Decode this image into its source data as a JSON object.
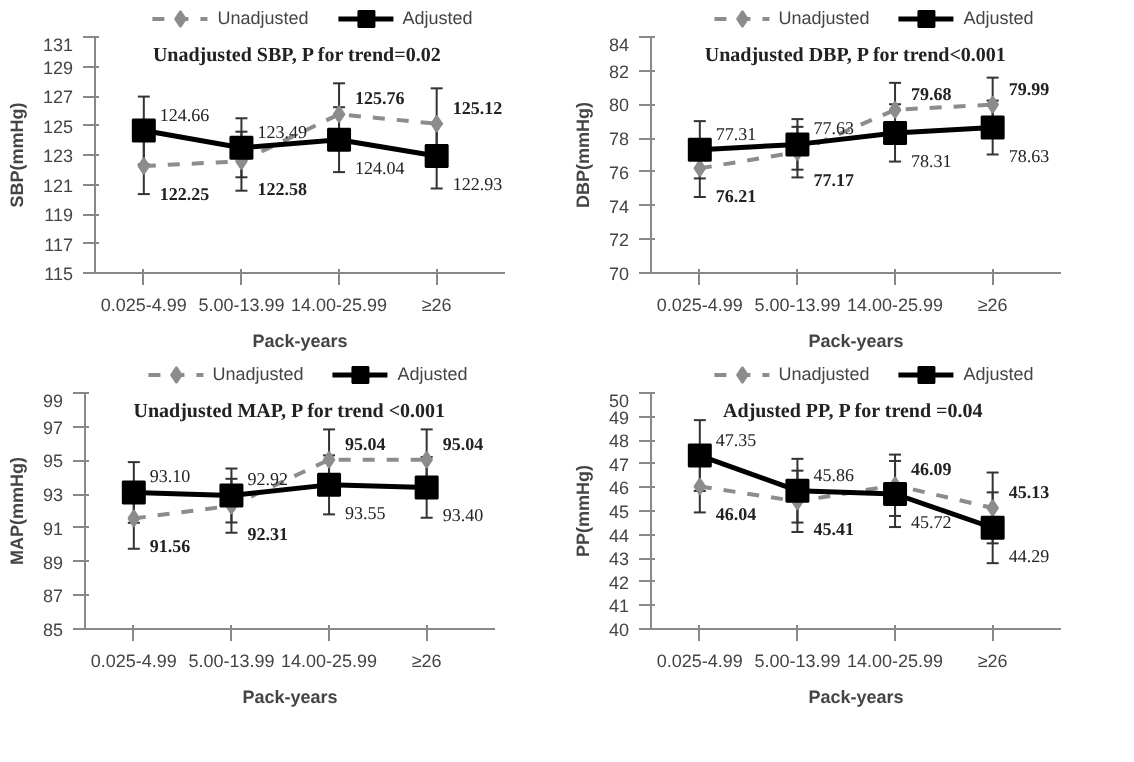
{
  "chart_data": [
    {
      "type": "line",
      "title": "Unadjusted  SBP, P for trend=0.02",
      "xlabel": "Pack-years",
      "ylabel": "SBP(mmHg)",
      "categories": [
        "0.025-4.99",
        "5.00-13.99",
        "14.00-25.99",
        "≥26"
      ],
      "ylim": [
        115,
        131
      ],
      "yticks": [
        115,
        117,
        119,
        121,
        123,
        125,
        127,
        129,
        131
      ],
      "grid": false,
      "legend": "top",
      "series": [
        {
          "name": "Unadjusted",
          "color": "#8c8c8c",
          "marker": "diamond",
          "line_style": "dashed",
          "values": [
            122.25,
            122.58,
            125.76,
            125.12
          ],
          "value_labels": [
            "122.25",
            "122.58",
            "125.76",
            "125.12"
          ],
          "errors": [
            1.9,
            2.0,
            2.1,
            2.4
          ]
        },
        {
          "name": "Adjusted",
          "color": "#000000",
          "marker": "square",
          "line_style": "solid",
          "values": [
            124.66,
            123.49,
            124.04,
            122.93
          ],
          "value_labels": [
            "124.66",
            "123.49",
            "124.04",
            "122.93"
          ],
          "errors": [
            2.3,
            2.0,
            2.2,
            2.2
          ]
        }
      ]
    },
    {
      "type": "line",
      "title": "Unadjusted DBP, P for trend<0.001",
      "xlabel": "Pack-years",
      "ylabel": "DBP(mmHg)",
      "categories": [
        "0.025-4.99",
        "5.00-13.99",
        "14.00-25.99",
        "≥26"
      ],
      "ylim": [
        70,
        84
      ],
      "yticks": [
        70,
        72,
        74,
        76,
        78,
        80,
        82,
        84
      ],
      "grid": false,
      "legend": "top",
      "series": [
        {
          "name": "Unadjusted",
          "color": "#8c8c8c",
          "marker": "diamond",
          "line_style": "dashed",
          "values": [
            76.21,
            77.17,
            79.68,
            79.99
          ],
          "value_labels": [
            "76.21",
            "77.17",
            "79.68",
            "79.99"
          ],
          "errors": [
            1.7,
            1.5,
            1.6,
            1.6
          ]
        },
        {
          "name": "Adjusted",
          "color": "#000000",
          "marker": "square",
          "line_style": "solid",
          "values": [
            77.31,
            77.63,
            78.31,
            78.63
          ],
          "value_labels": [
            "77.31",
            "77.63",
            "78.31",
            "78.63"
          ],
          "errors": [
            1.7,
            1.5,
            1.7,
            1.6
          ]
        }
      ]
    },
    {
      "type": "line",
      "title": "Unadjusted MAP, P for trend <0.001",
      "xlabel": "Pack-years",
      "ylabel": "MAP(mmHg)",
      "categories": [
        "0.025-4.99",
        "5.00-13.99",
        "14.00-25.99",
        "≥26"
      ],
      "ylim": [
        85,
        99
      ],
      "yticks": [
        85,
        87,
        89,
        91,
        93,
        95,
        97,
        99
      ],
      "grid": false,
      "legend": "top",
      "series": [
        {
          "name": "Unadjusted",
          "color": "#8c8c8c",
          "marker": "diamond",
          "line_style": "dashed",
          "values": [
            91.56,
            92.31,
            95.04,
            95.04
          ],
          "value_labels": [
            "91.56",
            "92.31",
            "95.04",
            "95.04"
          ],
          "errors": [
            1.8,
            1.6,
            1.8,
            1.8
          ]
        },
        {
          "name": "Adjusted",
          "color": "#000000",
          "marker": "square",
          "line_style": "solid",
          "values": [
            93.1,
            92.92,
            93.55,
            93.4
          ],
          "value_labels": [
            "93.10",
            "92.92",
            "93.55",
            "93.40"
          ],
          "errors": [
            1.8,
            1.6,
            1.75,
            1.8
          ]
        }
      ]
    },
    {
      "type": "line",
      "title": "Adjusted  PP, P for trend =0.04",
      "xlabel": "Pack-years",
      "ylabel": "PP(mmHg)",
      "categories": [
        "0.025-4.99",
        "5.00-13.99",
        "14.00-25.99",
        "≥26"
      ],
      "ylim": [
        40,
        50
      ],
      "yticks": [
        40,
        41,
        42,
        43,
        44,
        45,
        46,
        47,
        48,
        49,
        50
      ],
      "grid": false,
      "legend": "top",
      "series": [
        {
          "name": "Unadjusted",
          "color": "#8c8c8c",
          "marker": "diamond",
          "line_style": "dashed",
          "values": [
            46.04,
            45.41,
            46.09,
            45.13
          ],
          "value_labels": [
            "46.04",
            "45.41",
            "46.09",
            "45.13"
          ],
          "errors": [
            1.1,
            1.3,
            1.3,
            1.5
          ]
        },
        {
          "name": "Adjusted",
          "color": "#000000",
          "marker": "square",
          "line_style": "solid",
          "values": [
            47.35,
            45.86,
            45.72,
            44.29
          ],
          "value_labels": [
            "47.35",
            "45.86",
            "45.72",
            "44.29"
          ],
          "errors": [
            1.5,
            1.35,
            1.4,
            1.5
          ]
        }
      ]
    }
  ]
}
